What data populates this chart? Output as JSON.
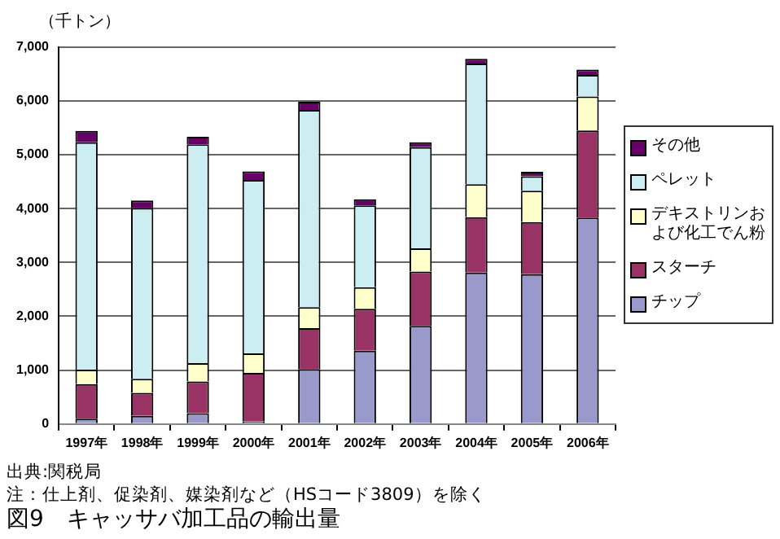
{
  "chart_data": {
    "type": "bar",
    "stacked": true,
    "ylabel": "（千トン）",
    "title": "図9　キャッサバ加工品の輸出量",
    "annotations": [
      "出典:関税局",
      "注：仕上剤、促染剤、媒染剤など（HSコード3809）を除く"
    ],
    "categories": [
      "1997年",
      "1998年",
      "1999年",
      "2000年",
      "2001年",
      "2002年",
      "2003年",
      "2004年",
      "2005年",
      "2006年"
    ],
    "series": [
      {
        "name": "チップ",
        "color": "#9999cc",
        "values": [
          100,
          150,
          200,
          50,
          1020,
          1360,
          1820,
          2810,
          2780,
          3830
        ]
      },
      {
        "name": "スターチ",
        "color": "#993366",
        "values": [
          640,
          430,
          590,
          900,
          760,
          780,
          1010,
          1030,
          970,
          1620
        ]
      },
      {
        "name": "デキストリンおよび化工でん粉",
        "color": "#ffffcc",
        "values": [
          270,
          260,
          340,
          360,
          390,
          400,
          430,
          610,
          580,
          630
        ]
      },
      {
        "name": "ペレット",
        "color": "#cceef2",
        "values": [
          4220,
          3170,
          4060,
          3220,
          3660,
          1520,
          1880,
          2240,
          270,
          400
        ]
      },
      {
        "name": "その他",
        "color": "#660066",
        "values": [
          210,
          140,
          140,
          160,
          150,
          110,
          90,
          90,
          80,
          100
        ]
      }
    ],
    "ylim": [
      0,
      7000
    ],
    "yticks": [
      {
        "value": 0,
        "label": "0"
      },
      {
        "value": 1000,
        "label": "1,000"
      },
      {
        "value": 2000,
        "label": "2,000"
      },
      {
        "value": 3000,
        "label": "3,000"
      },
      {
        "value": 4000,
        "label": "4,000"
      },
      {
        "value": 5000,
        "label": "5,000"
      },
      {
        "value": 6000,
        "label": "6,000"
      },
      {
        "value": 7000,
        "label": "7,000"
      }
    ],
    "grid": "y",
    "legend": "right"
  }
}
